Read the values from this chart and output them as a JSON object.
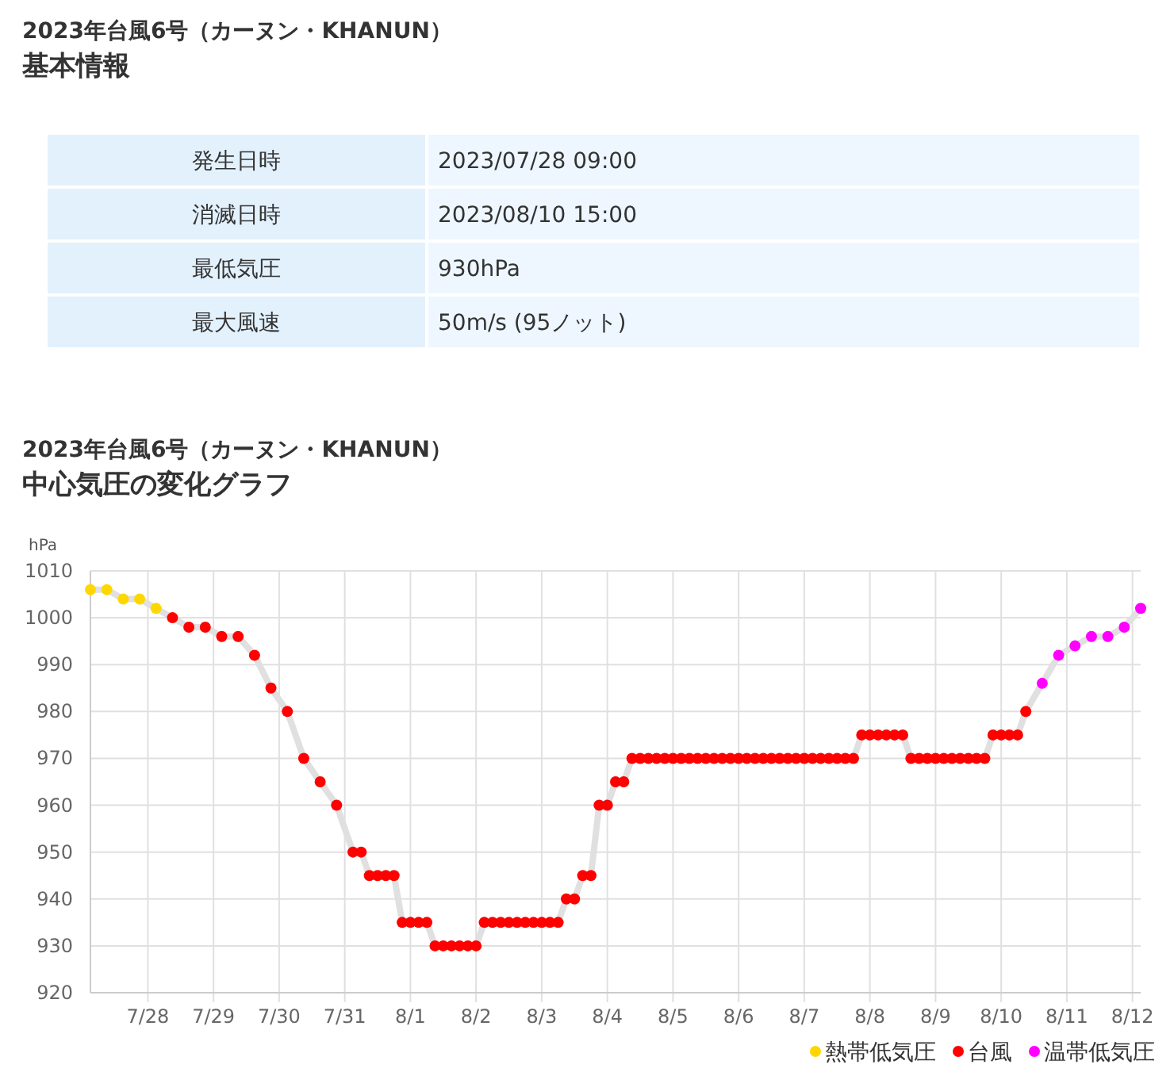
{
  "chart_data": [
    {
      "type": "other",
      "title": "2023年台風6号（カーヌン・KHANUN）",
      "subtitle": "基本情報",
      "categories": [
        "発生日時",
        "消滅日時",
        "最低気圧",
        "最大風速"
      ],
      "value_labels": [
        "2023/07/28 09:00",
        "2023/08/10 15:00",
        "930hPa",
        "50m/s (95ノット)"
      ]
    },
    {
      "type": "scatter",
      "title": "2023年台風6号（カーヌン・KHANUN）",
      "subtitle": "中心気圧の変化グラフ",
      "ylabel": "hPa",
      "xlim": [
        "2023-07-27T03:00",
        "2023-08-12T03:00"
      ],
      "xticks": [
        {
          "value": "2023-07-28",
          "label": "7/28"
        },
        {
          "value": "2023-07-29",
          "label": "7/29"
        },
        {
          "value": "2023-07-30",
          "label": "7/30"
        },
        {
          "value": "2023-07-31",
          "label": "7/31"
        },
        {
          "value": "2023-08-01",
          "label": "8/1"
        },
        {
          "value": "2023-08-02",
          "label": "8/2"
        },
        {
          "value": "2023-08-03",
          "label": "8/3"
        },
        {
          "value": "2023-08-04",
          "label": "8/4"
        },
        {
          "value": "2023-08-05",
          "label": "8/5"
        },
        {
          "value": "2023-08-06",
          "label": "8/6"
        },
        {
          "value": "2023-08-07",
          "label": "8/7"
        },
        {
          "value": "2023-08-08",
          "label": "8/8"
        },
        {
          "value": "2023-08-09",
          "label": "8/9"
        },
        {
          "value": "2023-08-10",
          "label": "8/10"
        },
        {
          "value": "2023-08-11",
          "label": "8/11"
        },
        {
          "value": "2023-08-12",
          "label": "8/12"
        }
      ],
      "ylim": [
        920,
        1010
      ],
      "yticks": [
        920,
        930,
        940,
        950,
        960,
        970,
        980,
        990,
        1000,
        1010
      ],
      "grid": true,
      "legend": "bottom right",
      "marker": "circle",
      "series": [
        {
          "type": "line",
          "color": "#e0e0e0",
          "line_style": "solid",
          "marker": "none",
          "x": [
            "2023-07-27T03:00",
            "2023-07-27T09:00",
            "2023-07-27T15:00",
            "2023-07-27T21:00",
            "2023-07-28T03:00",
            "2023-07-28T09:00",
            "2023-07-28T15:00",
            "2023-07-28T21:00",
            "2023-07-29T03:00",
            "2023-07-29T09:00",
            "2023-07-29T15:00",
            "2023-07-29T21:00",
            "2023-07-30T03:00",
            "2023-07-30T09:00",
            "2023-07-30T15:00",
            "2023-07-30T21:00",
            "2023-07-31T03:00",
            "2023-07-31T06:00",
            "2023-07-31T09:00",
            "2023-07-31T12:00",
            "2023-07-31T15:00",
            "2023-07-31T18:00",
            "2023-07-31T21:00",
            "2023-08-01T00:00",
            "2023-08-01T03:00",
            "2023-08-01T06:00",
            "2023-08-01T09:00",
            "2023-08-01T12:00",
            "2023-08-01T15:00",
            "2023-08-01T18:00",
            "2023-08-01T21:00",
            "2023-08-02T00:00",
            "2023-08-02T03:00",
            "2023-08-02T06:00",
            "2023-08-02T09:00",
            "2023-08-02T12:00",
            "2023-08-02T15:00",
            "2023-08-02T18:00",
            "2023-08-02T21:00",
            "2023-08-03T00:00",
            "2023-08-03T03:00",
            "2023-08-03T06:00",
            "2023-08-03T09:00",
            "2023-08-03T12:00",
            "2023-08-03T15:00",
            "2023-08-03T18:00",
            "2023-08-03T21:00",
            "2023-08-04T00:00",
            "2023-08-04T03:00",
            "2023-08-04T06:00",
            "2023-08-04T09:00",
            "2023-08-04T12:00",
            "2023-08-04T15:00",
            "2023-08-04T18:00",
            "2023-08-04T21:00",
            "2023-08-05T00:00",
            "2023-08-05T03:00",
            "2023-08-05T06:00",
            "2023-08-05T09:00",
            "2023-08-05T12:00",
            "2023-08-05T15:00",
            "2023-08-05T18:00",
            "2023-08-05T21:00",
            "2023-08-06T00:00",
            "2023-08-06T03:00",
            "2023-08-06T06:00",
            "2023-08-06T09:00",
            "2023-08-06T12:00",
            "2023-08-06T15:00",
            "2023-08-06T18:00",
            "2023-08-06T21:00",
            "2023-08-07T00:00",
            "2023-08-07T03:00",
            "2023-08-07T06:00",
            "2023-08-07T09:00",
            "2023-08-07T12:00",
            "2023-08-07T15:00",
            "2023-08-07T18:00",
            "2023-08-07T21:00",
            "2023-08-08T00:00",
            "2023-08-08T03:00",
            "2023-08-08T06:00",
            "2023-08-08T09:00",
            "2023-08-08T12:00",
            "2023-08-08T15:00",
            "2023-08-08T18:00",
            "2023-08-08T21:00",
            "2023-08-09T00:00",
            "2023-08-09T03:00",
            "2023-08-09T06:00",
            "2023-08-09T09:00",
            "2023-08-09T12:00",
            "2023-08-09T15:00",
            "2023-08-09T18:00",
            "2023-08-09T21:00",
            "2023-08-10T00:00",
            "2023-08-10T03:00",
            "2023-08-10T06:00",
            "2023-08-10T09:00",
            "2023-08-10T15:00",
            "2023-08-10T21:00",
            "2023-08-11T03:00",
            "2023-08-11T09:00",
            "2023-08-11T15:00",
            "2023-08-11T21:00",
            "2023-08-12T03:00"
          ],
          "values": [
            1006,
            1006,
            1004,
            1004,
            1002,
            1000,
            998,
            998,
            996,
            996,
            992,
            985,
            980,
            970,
            965,
            960,
            950,
            950,
            945,
            945,
            945,
            945,
            935,
            935,
            935,
            935,
            930,
            930,
            930,
            930,
            930,
            930,
            935,
            935,
            935,
            935,
            935,
            935,
            935,
            935,
            935,
            935,
            940,
            940,
            945,
            945,
            960,
            960,
            965,
            965,
            970,
            970,
            970,
            970,
            970,
            970,
            970,
            970,
            970,
            970,
            970,
            970,
            970,
            970,
            970,
            970,
            970,
            970,
            970,
            970,
            970,
            970,
            970,
            970,
            970,
            970,
            970,
            970,
            975,
            975,
            975,
            975,
            975,
            975,
            970,
            970,
            970,
            970,
            970,
            970,
            970,
            970,
            970,
            970,
            975,
            975,
            975,
            975,
            980,
            986,
            992,
            994,
            996,
            996,
            998,
            1002
          ]
        },
        {
          "name": "熱帯低気圧",
          "color": "#ffd700",
          "x": [
            "2023-07-27T03:00",
            "2023-07-27T09:00",
            "2023-07-27T15:00",
            "2023-07-27T21:00",
            "2023-07-28T03:00"
          ],
          "values": [
            1006,
            1006,
            1004,
            1004,
            1002
          ]
        },
        {
          "name": "台風",
          "color": "#ff0000",
          "x": [
            "2023-07-28T09:00",
            "2023-07-28T15:00",
            "2023-07-28T21:00",
            "2023-07-29T03:00",
            "2023-07-29T09:00",
            "2023-07-29T15:00",
            "2023-07-29T21:00",
            "2023-07-30T03:00",
            "2023-07-30T09:00",
            "2023-07-30T15:00",
            "2023-07-30T21:00",
            "2023-07-31T03:00",
            "2023-07-31T06:00",
            "2023-07-31T09:00",
            "2023-07-31T12:00",
            "2023-07-31T15:00",
            "2023-07-31T18:00",
            "2023-07-31T21:00",
            "2023-08-01T00:00",
            "2023-08-01T03:00",
            "2023-08-01T06:00",
            "2023-08-01T09:00",
            "2023-08-01T12:00",
            "2023-08-01T15:00",
            "2023-08-01T18:00",
            "2023-08-01T21:00",
            "2023-08-02T00:00",
            "2023-08-02T03:00",
            "2023-08-02T06:00",
            "2023-08-02T09:00",
            "2023-08-02T12:00",
            "2023-08-02T15:00",
            "2023-08-02T18:00",
            "2023-08-02T21:00",
            "2023-08-03T00:00",
            "2023-08-03T03:00",
            "2023-08-03T06:00",
            "2023-08-03T09:00",
            "2023-08-03T12:00",
            "2023-08-03T15:00",
            "2023-08-03T18:00",
            "2023-08-03T21:00",
            "2023-08-04T00:00",
            "2023-08-04T03:00",
            "2023-08-04T06:00",
            "2023-08-04T09:00",
            "2023-08-04T12:00",
            "2023-08-04T15:00",
            "2023-08-04T18:00",
            "2023-08-04T21:00",
            "2023-08-05T00:00",
            "2023-08-05T03:00",
            "2023-08-05T06:00",
            "2023-08-05T09:00",
            "2023-08-05T12:00",
            "2023-08-05T15:00",
            "2023-08-05T18:00",
            "2023-08-05T21:00",
            "2023-08-06T00:00",
            "2023-08-06T03:00",
            "2023-08-06T06:00",
            "2023-08-06T09:00",
            "2023-08-06T12:00",
            "2023-08-06T15:00",
            "2023-08-06T18:00",
            "2023-08-06T21:00",
            "2023-08-07T00:00",
            "2023-08-07T03:00",
            "2023-08-07T06:00",
            "2023-08-07T09:00",
            "2023-08-07T12:00",
            "2023-08-07T15:00",
            "2023-08-07T18:00",
            "2023-08-07T21:00",
            "2023-08-08T00:00",
            "2023-08-08T03:00",
            "2023-08-08T06:00",
            "2023-08-08T09:00",
            "2023-08-08T12:00",
            "2023-08-08T15:00",
            "2023-08-08T18:00",
            "2023-08-08T21:00",
            "2023-08-09T00:00",
            "2023-08-09T03:00",
            "2023-08-09T06:00",
            "2023-08-09T09:00",
            "2023-08-09T12:00",
            "2023-08-09T15:00",
            "2023-08-09T18:00",
            "2023-08-09T21:00",
            "2023-08-10T00:00",
            "2023-08-10T03:00",
            "2023-08-10T06:00",
            "2023-08-10T09:00"
          ],
          "values": [
            1000,
            998,
            998,
            996,
            996,
            992,
            985,
            980,
            970,
            965,
            960,
            950,
            950,
            945,
            945,
            945,
            945,
            935,
            935,
            935,
            935,
            930,
            930,
            930,
            930,
            930,
            930,
            935,
            935,
            935,
            935,
            935,
            935,
            935,
            935,
            935,
            935,
            940,
            940,
            945,
            945,
            960,
            960,
            965,
            965,
            970,
            970,
            970,
            970,
            970,
            970,
            970,
            970,
            970,
            970,
            970,
            970,
            970,
            970,
            970,
            970,
            970,
            970,
            970,
            970,
            970,
            970,
            970,
            970,
            970,
            970,
            970,
            970,
            975,
            975,
            975,
            975,
            975,
            975,
            970,
            970,
            970,
            970,
            970,
            970,
            970,
            970,
            970,
            970,
            975,
            975,
            975,
            975,
            980
          ]
        },
        {
          "name": "温帯低気圧",
          "color": "#ff00ff",
          "x": [
            "2023-08-10T15:00",
            "2023-08-10T21:00",
            "2023-08-11T03:00",
            "2023-08-11T09:00",
            "2023-08-11T15:00",
            "2023-08-11T21:00",
            "2023-08-12T03:00"
          ],
          "values": [
            986,
            992,
            994,
            996,
            996,
            998,
            1002
          ]
        }
      ]
    }
  ]
}
